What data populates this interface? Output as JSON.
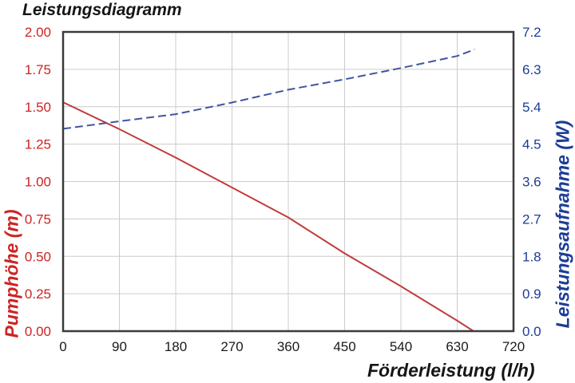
{
  "title": "Leistungsdiagramm",
  "colors": {
    "title_text": "#161616",
    "x_tick_text": "#1a1a1a",
    "left_axis_red": "#cc2424",
    "right_axis_blue": "#1c3d96",
    "red_line": "#c23b3b",
    "blue_line": "#44549e",
    "grid": "#cccccc",
    "plot_border": "#3b3b3b",
    "background": "#ffffff"
  },
  "chart_data": {
    "type": "line",
    "title": "Leistungsdiagramm",
    "xlabel": "Förderleistung (l/h)",
    "grid": true,
    "legend": "none",
    "xlim": [
      0,
      720
    ],
    "x_ticks": [
      "0",
      "90",
      "180",
      "270",
      "360",
      "450",
      "540",
      "630",
      "720"
    ],
    "left_axis": {
      "label": "Pumphöhe (m)",
      "lim": [
        0,
        2.0
      ],
      "ticks": [
        "2.00",
        "1.75",
        "1.50",
        "1.25",
        "1.00",
        "0.75",
        "0.50",
        "0.25",
        "0.00"
      ],
      "color": "#cc2424"
    },
    "right_axis": {
      "label": "Leistungsaufnahme (W)",
      "lim": [
        0,
        7.2
      ],
      "ticks": [
        "7.2",
        "6.3",
        "5.4",
        "4.5",
        "3.6",
        "2.7",
        "1.8",
        "0.9",
        "0.0"
      ],
      "color": "#1c3d96"
    },
    "series": [
      {
        "name": "Pumphöhe",
        "axis": "left",
        "style": "solid",
        "color": "#c23b3b",
        "x": [
          0,
          90,
          180,
          270,
          360,
          450,
          540,
          630,
          656
        ],
        "y": [
          1.53,
          1.35,
          1.16,
          0.96,
          0.76,
          0.52,
          0.3,
          0.07,
          0.0
        ]
      },
      {
        "name": "Leistungsaufnahme",
        "axis": "right",
        "style": "dashed",
        "color": "#44549e",
        "x": [
          0,
          90,
          180,
          270,
          360,
          450,
          540,
          630,
          658
        ],
        "y": [
          4.87,
          5.05,
          5.22,
          5.5,
          5.81,
          6.06,
          6.33,
          6.62,
          6.78
        ]
      }
    ]
  }
}
